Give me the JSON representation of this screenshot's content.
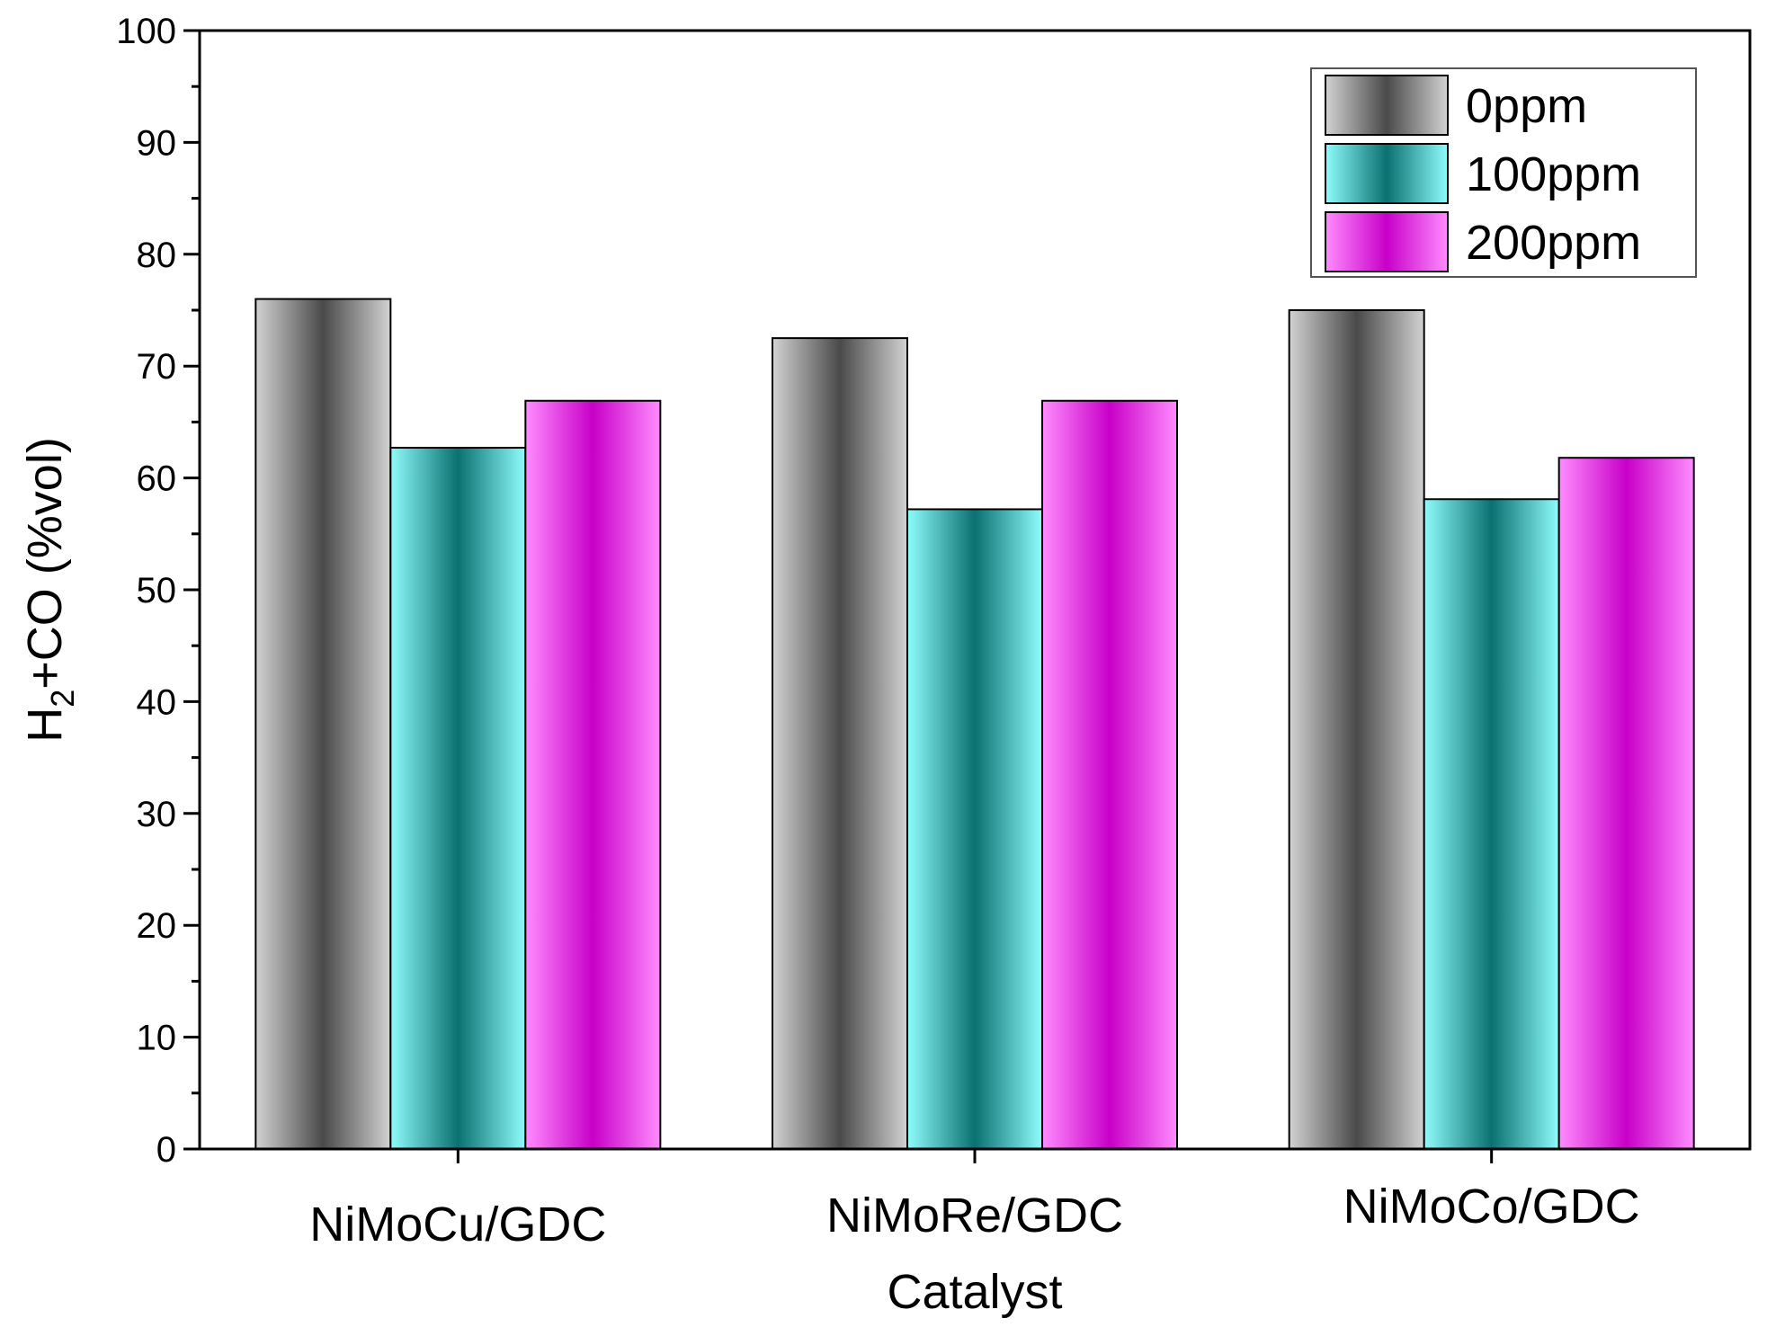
{
  "chart_data": {
    "type": "bar",
    "title": "",
    "xlabel": "Catalyst",
    "ylabel": {
      "prefix": "H",
      "subscript": "2",
      "suffix": "+CO (%vol)"
    },
    "ylim": [
      0,
      100
    ],
    "yticks": [
      "0",
      "10",
      "20",
      "30",
      "40",
      "50",
      "60",
      "70",
      "80",
      "90",
      "100"
    ],
    "categories": [
      "NiMoCu/GDC",
      "NiMoRe/GDC",
      "NiMoCo/GDC"
    ],
    "series": [
      {
        "name": "0ppm",
        "values": [
          76,
          72.5,
          75
        ],
        "color_light": "#d2d2d2",
        "color_dark": "#4a4a4a"
      },
      {
        "name": "100ppm",
        "values": [
          62.7,
          57.2,
          58.1
        ],
        "color_light": "#8ffcfc",
        "color_dark": "#0b7070"
      },
      {
        "name": "200ppm",
        "values": [
          66.9,
          66.9,
          61.8
        ],
        "color_light": "#ff8cff",
        "color_dark": "#c800c8"
      }
    ],
    "legend_position": "top-right",
    "grid": false
  }
}
